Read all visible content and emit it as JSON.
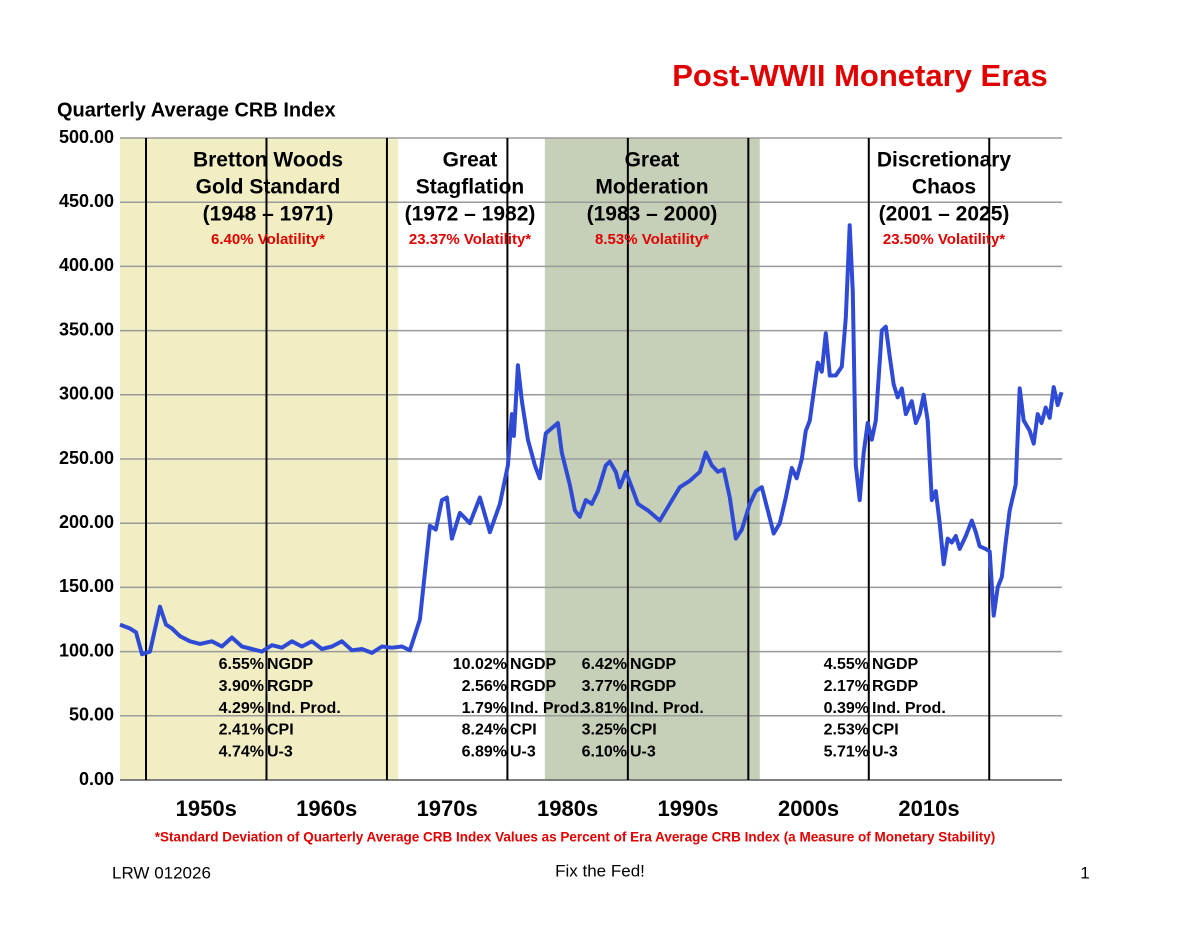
{
  "chart_data": {
    "type": "line",
    "title": "Post-WWII Monetary Eras",
    "y_axis_title": "Quarterly Average CRB Index",
    "footnote": "*Standard Deviation of Quarterly Average CRB Index Values as Percent of Era Average CRB Index (a Measure of Monetary Stability)",
    "color": "#2f4bd6",
    "xlim": [
      1947,
      2025.2
    ],
    "ylim": [
      0,
      500
    ],
    "yticks": [
      {
        "value": 0,
        "label": "0.00"
      },
      {
        "value": 50,
        "label": "50.00"
      },
      {
        "value": 100,
        "label": "100.00"
      },
      {
        "value": 150,
        "label": "150.00"
      },
      {
        "value": 200,
        "label": "200.00"
      },
      {
        "value": 250,
        "label": "250.00"
      },
      {
        "value": 300,
        "label": "300.00"
      },
      {
        "value": 350,
        "label": "350.00"
      },
      {
        "value": 400,
        "label": "400.00"
      },
      {
        "value": 450,
        "label": "450.00"
      },
      {
        "value": 500,
        "label": "500.00"
      }
    ],
    "grid": true,
    "xticks": [
      {
        "value": 1954.16,
        "label": "1950s"
      },
      {
        "value": 1964.16,
        "label": "1960s"
      },
      {
        "value": 1974.16,
        "label": "1970s"
      },
      {
        "value": 1984.16,
        "label": "1980s"
      },
      {
        "value": 1994.16,
        "label": "1990s"
      },
      {
        "value": 2004.16,
        "label": "2000s"
      },
      {
        "value": 2014.16,
        "label": "2010s"
      }
    ],
    "vlines": [
      1949.16,
      1959.16,
      1969.16,
      1979.16,
      1989.16,
      1999.16,
      2009.16,
      2019.16
    ],
    "eras": [
      {
        "heading": [
          "Bretton Woods",
          "Gold Standard"
        ],
        "period": "(1948 – 1971)",
        "volatility": "6.40% Volatility*",
        "band": [
          1947,
          1970.07
        ],
        "band_color": "#f1eec3",
        "stats": [
          {
            "value": "6.55%",
            "label": "NGDP"
          },
          {
            "value": "3.90%",
            "label": "RGDP"
          },
          {
            "value": "4.29%",
            "label": "Ind. Prod."
          },
          {
            "value": "2.41%",
            "label": "CPI"
          },
          {
            "value": "4.74%",
            "label": "U-3"
          }
        ]
      },
      {
        "heading": [
          "Great",
          "Stagflation"
        ],
        "period": "(1972 – 1982)",
        "volatility": "23.37% Volatility*",
        "stats": [
          {
            "value": "10.02%",
            "label": "NGDP"
          },
          {
            "value": "2.56%",
            "label": "RGDP"
          },
          {
            "value": "1.79%",
            "label": "Ind. Prod."
          },
          {
            "value": "8.24%",
            "label": "CPI"
          },
          {
            "value": "6.89%",
            "label": "U-3"
          }
        ]
      },
      {
        "heading": [
          "Great",
          "Moderation"
        ],
        "period": "(1983 – 2000)",
        "volatility": "8.53% Volatility*",
        "band": [
          1982.27,
          2000.11
        ],
        "band_color": "#c6d0b8",
        "stats": [
          {
            "value": "6.42%",
            "label": "NGDP"
          },
          {
            "value": "3.77%",
            "label": "RGDP"
          },
          {
            "value": "3.81%",
            "label": "Ind. Prod."
          },
          {
            "value": "3.25%",
            "label": "CPI"
          },
          {
            "value": "6.10%",
            "label": "U-3"
          }
        ]
      },
      {
        "heading": [
          "Discretionary",
          "Chaos"
        ],
        "period": "(2001 – 2025)",
        "volatility": "23.50% Volatility*",
        "stats": [
          {
            "value": "4.55%",
            "label": "NGDP"
          },
          {
            "value": "2.17%",
            "label": "RGDP"
          },
          {
            "value": "0.39%",
            "label": "Ind. Prod."
          },
          {
            "value": "2.53%",
            "label": "CPI"
          },
          {
            "value": "5.71%",
            "label": "U-3"
          }
        ]
      }
    ],
    "x": [
      1947.0,
      1947.83,
      1948.33,
      1948.83,
      1949.49,
      1950.32,
      1950.82,
      1951.32,
      1951.98,
      1952.81,
      1953.64,
      1954.63,
      1955.46,
      1956.29,
      1957.12,
      1957.95,
      1958.78,
      1959.61,
      1960.44,
      1961.27,
      1962.1,
      1962.93,
      1963.76,
      1964.59,
      1965.42,
      1966.25,
      1967.08,
      1967.91,
      1968.74,
      1969.57,
      1970.4,
      1971.07,
      1971.9,
      1972.73,
      1973.22,
      1973.72,
      1974.14,
      1974.55,
      1975.22,
      1976.05,
      1976.88,
      1977.71,
      1978.54,
      1979.2,
      1979.53,
      1979.7,
      1980.03,
      1980.36,
      1980.86,
      1981.44,
      1981.85,
      1982.35,
      1983.35,
      1983.68,
      1984.34,
      1984.76,
      1985.17,
      1985.67,
      1986.17,
      1986.67,
      1987.33,
      1987.66,
      1988.16,
      1988.49,
      1988.99,
      1989.49,
      1989.99,
      1990.82,
      1991.81,
      1992.64,
      1993.47,
      1994.3,
      1995.13,
      1995.63,
      1996.13,
      1996.63,
      1997.12,
      1997.62,
      1998.12,
      1998.62,
      1999.28,
      1999.78,
      2000.28,
      2000.78,
      2001.27,
      2001.77,
      2002.27,
      2002.77,
      2003.18,
      2003.6,
      2003.93,
      2004.26,
      2004.59,
      2004.93,
      2005.26,
      2005.59,
      2005.92,
      2006.42,
      2006.92,
      2007.25,
      2007.58,
      2007.83,
      2008.08,
      2008.41,
      2008.74,
      2009.07,
      2009.41,
      2009.74,
      2010.24,
      2010.57,
      2010.9,
      2011.23,
      2011.56,
      2011.9,
      2012.23,
      2012.73,
      2013.06,
      2013.39,
      2013.72,
      2014.05,
      2014.39,
      2014.72,
      2015.05,
      2015.38,
      2015.71,
      2016.05,
      2016.38,
      2016.71,
      2017.21,
      2017.71,
      2018.04,
      2018.37,
      2018.87,
      2019.2,
      2019.53,
      2019.86,
      2020.2,
      2020.53,
      2020.86,
      2021.36,
      2021.69,
      2022.02,
      2022.52,
      2022.85,
      2023.18,
      2023.51,
      2023.85,
      2024.18,
      2024.51,
      2024.84,
      2025.17
    ],
    "values": [
      121,
      118,
      115,
      98,
      100,
      135,
      121,
      118,
      112,
      108,
      106,
      108,
      104,
      111,
      104,
      102,
      100,
      105,
      103,
      108,
      104,
      108,
      102,
      104,
      108,
      101,
      102,
      99,
      104,
      103,
      104,
      101,
      125,
      198,
      195,
      218,
      220,
      188,
      208,
      200,
      220,
      193,
      215,
      245,
      285,
      268,
      323,
      295,
      265,
      245,
      235,
      270,
      278,
      255,
      230,
      210,
      205,
      218,
      215,
      225,
      245,
      248,
      240,
      228,
      240,
      228,
      215,
      210,
      202,
      215,
      228,
      233,
      240,
      255,
      245,
      240,
      242,
      220,
      188,
      195,
      215,
      225,
      228,
      210,
      192,
      200,
      220,
      243,
      235,
      250,
      272,
      280,
      302,
      325,
      318,
      348,
      315,
      315,
      322,
      360,
      432,
      380,
      245,
      218,
      255,
      278,
      265,
      280,
      350,
      353,
      330,
      308,
      298,
      305,
      285,
      295,
      278,
      285,
      300,
      280,
      218,
      225,
      200,
      168,
      188,
      185,
      190,
      180,
      190,
      202,
      193,
      182,
      180,
      178,
      128,
      150,
      158,
      185,
      210,
      230,
      305,
      280,
      272,
      262,
      285,
      278,
      290,
      282,
      306,
      292,
      302
    ]
  },
  "footer": {
    "left": "LRW 012026",
    "center": "Fix the Fed!",
    "page": "1"
  }
}
